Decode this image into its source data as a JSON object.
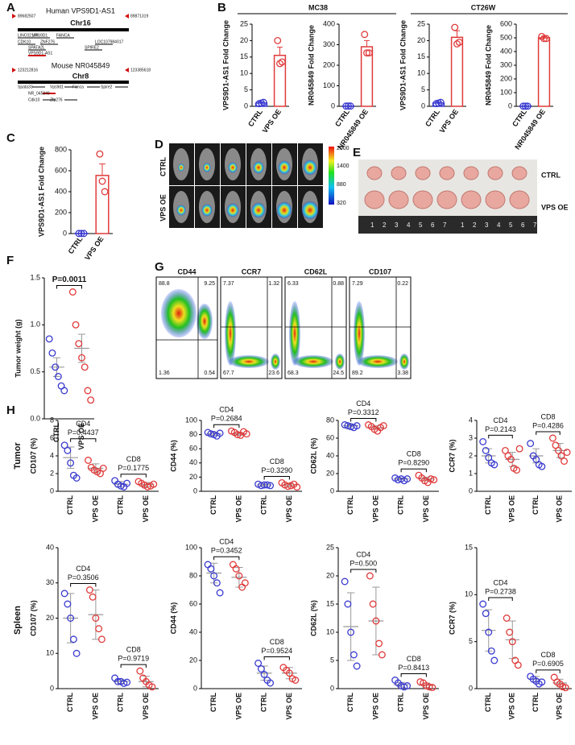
{
  "panel_labels": {
    "a": "A",
    "b": "B",
    "c": "C",
    "d": "D",
    "e": "E",
    "f": "F",
    "g": "G",
    "h": "H"
  },
  "diagram": {
    "human": {
      "title": "Human VPS9D1-AS1",
      "chrom": "Chr16",
      "start": "89682507",
      "end": "89871319",
      "genes": [
        "LINC02166",
        "VPS9D1",
        "FANCA",
        "CDK10",
        "ZNF276",
        "LOC107984017",
        "SPATA2L",
        "SPIRE2",
        "VPS9D1-AS1"
      ]
    },
    "mouse": {
      "title": "Mouse NR045849",
      "chrom": "Chr8",
      "start": "123212816",
      "end": "123385618",
      "genes": [
        "Spata33",
        "Vps9d1",
        "Fanca",
        "Spire2",
        "NR_045849",
        "Cdk10",
        "Zfp276"
      ]
    }
  },
  "panel_headers": {
    "mc38": "MC38",
    "ct26w": "CT26W"
  },
  "imaging": {
    "rows": [
      "CTRL",
      "VPS OE"
    ],
    "colorbar_ticks": [
      "2000",
      "1400",
      "880",
      "320"
    ]
  },
  "photo": {
    "rows": [
      "CTRL",
      "VPS OE"
    ],
    "ruler": [
      "1",
      "2",
      "3",
      "4",
      "5",
      "6",
      "7"
    ]
  },
  "row_labels": {
    "tumor": "Tumor",
    "spleen": "Spleen"
  },
  "flow": [
    {
      "title": "CD44",
      "q": [
        "88.8",
        "9.25",
        "1.36",
        "0.54"
      ]
    },
    {
      "title": "CCR7",
      "q": [
        "7.37",
        "1.32",
        "67.7",
        "23.6"
      ]
    },
    {
      "title": "CD62L",
      "q": [
        "6.33",
        "0.88",
        "68.3",
        "24.5"
      ]
    },
    {
      "title": "CD107",
      "q": [
        "7.29",
        "0.22",
        "89.2",
        "3.38"
      ]
    }
  ],
  "chart_data": [
    {
      "type": "bar",
      "y_label": "VPS9D1-AS1 Fold Change",
      "categories": [
        "CTRL",
        "VPS OE"
      ],
      "colors": [
        "#3a3ad0",
        "#e03a3a"
      ],
      "values": [
        1,
        15.5
      ],
      "errors": [
        0.3,
        2.5
      ],
      "points": [
        [
          0.8,
          1,
          1.2
        ],
        [
          20,
          13,
          13.5
        ]
      ],
      "ylim": [
        0,
        25
      ],
      "yticks": [
        0,
        5,
        10,
        15,
        20,
        25
      ]
    },
    {
      "type": "bar",
      "y_label": "NR045849 Fold Change",
      "categories": [
        "CTRL",
        "NR045849 OE"
      ],
      "colors": [
        "#3a3ad0",
        "#e03a3a"
      ],
      "values": [
        1,
        290
      ],
      "errors": [
        1,
        30
      ],
      "points": [
        [
          1,
          1,
          1
        ],
        [
          350,
          260,
          260
        ]
      ],
      "ylim": [
        0,
        400
      ],
      "yticks": [
        0,
        100,
        200,
        300,
        400
      ]
    },
    {
      "type": "bar",
      "y_label": "VPS9D1-AS1 Fold Change",
      "categories": [
        "CTRL",
        "VPS OE"
      ],
      "colors": [
        "#3a3ad0",
        "#e03a3a"
      ],
      "values": [
        1,
        21
      ],
      "errors": [
        0.3,
        2
      ],
      "points": [
        [
          0.8,
          1,
          1.2
        ],
        [
          24,
          19,
          19.5
        ]
      ],
      "ylim": [
        0,
        25
      ],
      "yticks": [
        0,
        5,
        10,
        15,
        20,
        25
      ]
    },
    {
      "type": "bar",
      "y_label": "NR045849 Fold Change",
      "categories": [
        "CTRL",
        "NR045849 OE"
      ],
      "colors": [
        "#3a3ad0",
        "#e03a3a"
      ],
      "values": [
        1,
        500
      ],
      "errors": [
        1,
        10
      ],
      "points": [
        [
          1,
          1,
          1
        ],
        [
          510,
          495,
          495
        ]
      ],
      "ylim": [
        0,
        600
      ],
      "yticks": [
        0,
        100,
        200,
        300,
        400,
        500,
        600
      ]
    },
    {
      "type": "bar",
      "y_label": "VPS9D1-AS1 Fold Change",
      "categories": [
        "CTRL",
        "VPS OE"
      ],
      "colors": [
        "#3a3ad0",
        "#e03a3a"
      ],
      "values": [
        1,
        555
      ],
      "errors": [
        1,
        110
      ],
      "points": [
        [
          1,
          1,
          1
        ],
        [
          760,
          500,
          400
        ]
      ],
      "ylim": [
        0,
        800
      ],
      "yticks": [
        0,
        200,
        400,
        600,
        800
      ]
    },
    {
      "type": "dot",
      "y_label": "Tumor weight (g)",
      "categories": [
        "CTRL",
        "VPS OE"
      ],
      "colors": [
        "#3a3ad0",
        "#e03a3a"
      ],
      "values": [
        0.55,
        0.75
      ],
      "errors": [
        0.1,
        0.15
      ],
      "points": [
        [
          0.85,
          0.7,
          0.55,
          0.45,
          0.35,
          0.3
        ],
        [
          1.35,
          1.0,
          0.8,
          0.65,
          0.55,
          0.3,
          0.2
        ]
      ],
      "ylim": [
        0,
        1.5
      ],
      "yticks": [
        {
          "value": 0,
          "label": "0.0"
        },
        0.5,
        {
          "value": 1,
          "label": "1.0"
        },
        1.5
      ],
      "comparisons": [
        {
          "p": "P=0.0011"
        }
      ]
    },
    {
      "type": "dot",
      "y_label": "CD107 (%)",
      "categories": [
        "CTRL",
        "VPS OE",
        "CTRL",
        "VPS OE"
      ],
      "colors": [
        "#3a3ad0",
        "#e03a3a",
        "#3a3ad0",
        "#e03a3a"
      ],
      "values": [
        3.8,
        2.6,
        0.8,
        0.75
      ],
      "errors": [
        1.2,
        0.5,
        0.3,
        0.25
      ],
      "points": [
        [
          5.2,
          4.6,
          3.2,
          1.8,
          1.5
        ],
        [
          3.5,
          2.7,
          2.4,
          2.2,
          2.0,
          2.6
        ],
        [
          1.2,
          0.8,
          0.6,
          0.5,
          0.9
        ],
        [
          1.1,
          0.9,
          0.7,
          0.5,
          0.6,
          0.8
        ]
      ],
      "ylim": [
        0,
        8
      ],
      "yticks": [
        0,
        2,
        4,
        6,
        8
      ],
      "comparisons": [
        {
          "group": "CD4",
          "p": "P=0.4437"
        },
        {
          "group": "CD8",
          "p": "P=0.1775"
        }
      ]
    },
    {
      "type": "dot",
      "y_label": "CD44 (%)",
      "categories": [
        "CTRL",
        "VPS OE",
        "CTRL",
        "VPS OE"
      ],
      "colors": [
        "#3a3ad0",
        "#e03a3a",
        "#3a3ad0",
        "#e03a3a"
      ],
      "values": [
        81,
        81,
        9,
        9
      ],
      "errors": [
        2,
        2,
        1,
        2
      ],
      "points": [
        [
          83,
          81,
          80,
          78,
          82
        ],
        [
          85,
          83,
          80,
          79,
          84,
          81
        ],
        [
          10,
          8,
          9,
          9,
          8
        ],
        [
          12,
          9,
          7,
          8,
          10,
          6
        ]
      ],
      "ylim": [
        0,
        100
      ],
      "yticks": [
        0,
        20,
        40,
        60,
        80,
        100
      ],
      "comparisons": [
        {
          "group": "CD4",
          "p": "P=0.2684"
        },
        {
          "group": "CD8",
          "p": "P=0.3290"
        }
      ]
    },
    {
      "type": "dot",
      "y_label": "CD62L (%)",
      "categories": [
        "CTRL",
        "VPS OE",
        "CTRL",
        "VPS OE"
      ],
      "colors": [
        "#3a3ad0",
        "#e03a3a",
        "#3a3ad0",
        "#e03a3a"
      ],
      "values": [
        74,
        72,
        14,
        14
      ],
      "errors": [
        1,
        2,
        1,
        2
      ],
      "points": [
        [
          75,
          74,
          73,
          72,
          74
        ],
        [
          75,
          73,
          70,
          68,
          72,
          74
        ],
        [
          15,
          13,
          14,
          12,
          14
        ],
        [
          18,
          15,
          12,
          10,
          14,
          13
        ]
      ],
      "ylim": [
        0,
        80
      ],
      "yticks": [
        0,
        20,
        40,
        60,
        80
      ],
      "comparisons": [
        {
          "group": "CD4",
          "p": "P=0.3312"
        },
        {
          "group": "CD8",
          "p": "P=0.8290"
        }
      ]
    },
    {
      "type": "dot",
      "y_label": "CCR7 (%)",
      "categories": [
        "CTRL",
        "VPS OE",
        "CTRL",
        "VPS OE"
      ],
      "colors": [
        "#3a3ad0",
        "#e03a3a",
        "#3a3ad0",
        "#e03a3a"
      ],
      "values": [
        2.0,
        1.8,
        2.0,
        2.3
      ],
      "errors": [
        0.4,
        0.4,
        0.4,
        0.4
      ],
      "points": [
        [
          2.8,
          2.3,
          1.9,
          1.6,
          1.5
        ],
        [
          2.3,
          2.0,
          1.8,
          1.3,
          1.2,
          2.4
        ],
        [
          2.7,
          2.0,
          1.8,
          1.5,
          1.4
        ],
        [
          3.0,
          2.6,
          2.3,
          2.0,
          1.7,
          2.2
        ]
      ],
      "ylim": [
        0,
        4
      ],
      "yticks": [
        0,
        1,
        2,
        3,
        4
      ],
      "comparisons": [
        {
          "group": "CD4",
          "p": "P=0.2143"
        },
        {
          "group": "CD8",
          "p": "P=0.4286"
        }
      ]
    },
    {
      "type": "dot",
      "y_label": "CD107 (%)",
      "categories": [
        "CTRL",
        "VPS OE",
        "CTRL",
        "VPS OE"
      ],
      "colors": [
        "#3a3ad0",
        "#e03a3a",
        "#3a3ad0",
        "#e03a3a"
      ],
      "values": [
        20,
        21,
        2,
        2
      ],
      "errors": [
        7,
        7,
        0.5,
        1.5
      ],
      "points": [
        [
          27,
          24,
          20,
          14,
          10
        ],
        [
          28,
          26,
          20,
          17,
          14
        ],
        [
          3,
          2,
          2,
          1.5,
          1.8
        ],
        [
          5,
          3,
          2,
          1,
          0.5
        ]
      ],
      "ylim": [
        0,
        40
      ],
      "yticks": [
        0,
        10,
        20,
        30,
        40
      ],
      "comparisons": [
        {
          "group": "CD4",
          "p": "P=0.3506"
        },
        {
          "group": "CD8",
          "p": "P=0.9719"
        }
      ]
    },
    {
      "type": "dot",
      "y_label": "CD44 (%)",
      "categories": [
        "CTRL",
        "VPS OE",
        "CTRL",
        "VPS OE"
      ],
      "colors": [
        "#3a3ad0",
        "#e03a3a",
        "#3a3ad0",
        "#e03a3a"
      ],
      "values": [
        82,
        79,
        11,
        11
      ],
      "errors": [
        7,
        7,
        5,
        4
      ],
      "points": [
        [
          88,
          85,
          80,
          75,
          68
        ],
        [
          88,
          85,
          80,
          72,
          75
        ],
        [
          18,
          14,
          10,
          6,
          4
        ],
        [
          15,
          13,
          11,
          7,
          6
        ]
      ],
      "ylim": [
        0,
        100
      ],
      "yticks": [
        0,
        20,
        40,
        60,
        80,
        100
      ],
      "comparisons": [
        {
          "group": "CD4",
          "p": "P=0.3452"
        },
        {
          "group": "CD8",
          "p": "P=0.9524"
        }
      ]
    },
    {
      "type": "dot",
      "y_label": "CD62L (%)",
      "categories": [
        "CTRL",
        "VPS OE",
        "CTRL",
        "VPS OE"
      ],
      "colors": [
        "#3a3ad0",
        "#e03a3a",
        "#3a3ad0",
        "#e03a3a"
      ],
      "values": [
        11,
        12,
        0.7,
        0.6
      ],
      "errors": [
        6,
        6,
        0.4,
        0.4
      ],
      "points": [
        [
          19,
          15,
          10,
          6,
          4
        ],
        [
          20,
          15,
          12,
          8,
          6
        ],
        [
          1.5,
          1,
          0.5,
          0.3,
          0.5
        ],
        [
          1.2,
          1,
          0.5,
          0.3,
          0.2
        ]
      ],
      "ylim": [
        0,
        25
      ],
      "yticks": [
        0,
        5,
        10,
        15,
        20,
        25
      ],
      "comparisons": [
        {
          "group": "CD4",
          "p": "P=0.500"
        },
        {
          "group": "CD8",
          "p": "P=0.8413"
        }
      ]
    },
    {
      "type": "dot",
      "y_label": "CCR7 (%)",
      "categories": [
        "CTRL",
        "VPS OE",
        "CTRL",
        "VPS OE"
      ],
      "colors": [
        "#3a3ad0",
        "#e03a3a",
        "#3a3ad0",
        "#e03a3a"
      ],
      "values": [
        6.2,
        5.2,
        1,
        0.6
      ],
      "errors": [
        2.2,
        2,
        0.3,
        0.4
      ],
      "points": [
        [
          9,
          8,
          6,
          4,
          3
        ],
        [
          7.5,
          6,
          5,
          3,
          2.5
        ],
        [
          1.3,
          1,
          0.8,
          0.5,
          0.7
        ],
        [
          1.2,
          0.7,
          0.5,
          0.2,
          0.1
        ]
      ],
      "ylim": [
        0,
        15
      ],
      "yticks": [
        0,
        5,
        10,
        15
      ],
      "comparisons": [
        {
          "group": "CD4",
          "p": "P=0.2738"
        },
        {
          "group": "CD8",
          "p": "P=0.6905"
        }
      ]
    }
  ]
}
